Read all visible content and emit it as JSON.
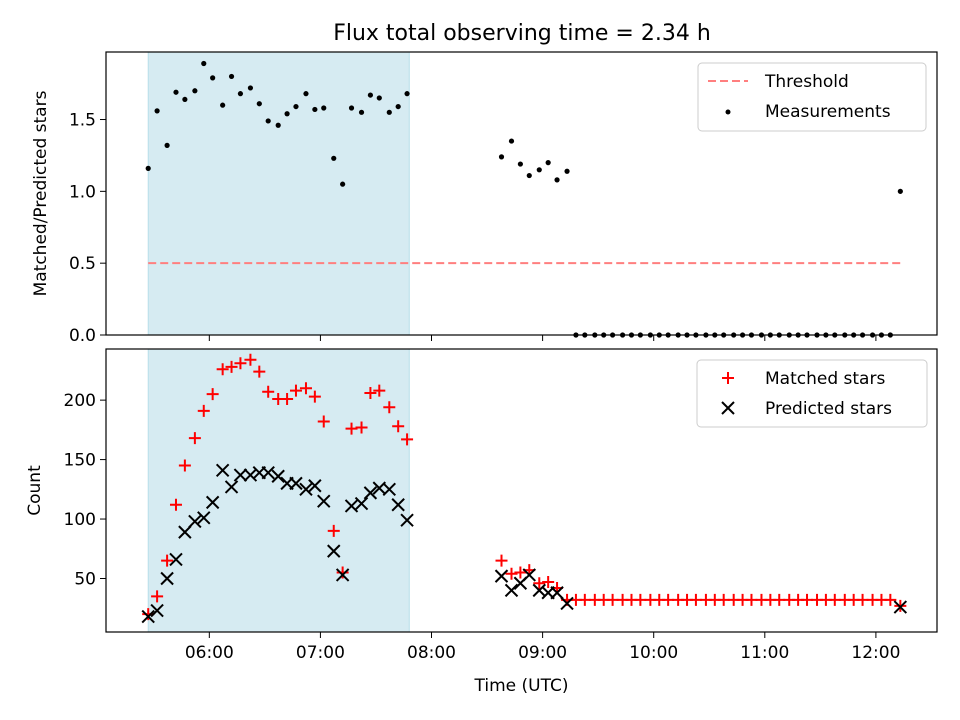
{
  "figure_title": "Flux total observing time = 2.34 h",
  "chart_data": [
    {
      "type": "scatter",
      "title": "Flux total observing time = 2.34 h",
      "xlabel": "",
      "ylabel": "Matched/Predicted stars",
      "ylim": [
        0,
        1.97
      ],
      "xlim_hours": [
        5.07,
        12.55
      ],
      "yticks": [
        "0.0",
        "0.5",
        "1.0",
        "1.5"
      ],
      "ytick_values": [
        0.0,
        0.5,
        1.0,
        1.5
      ],
      "highlight_span_hours": [
        5.45,
        7.8
      ],
      "threshold": {
        "value": 0.5,
        "x_range_hours": [
          5.45,
          12.22
        ],
        "color": "#ff7f7f"
      },
      "legend": {
        "placement": "top-right",
        "entries": [
          "Threshold",
          "Measurements"
        ]
      },
      "series": [
        {
          "name": "Measurements",
          "color": "#000000",
          "marker": "dot",
          "x_hours": [
            5.45,
            5.53,
            5.62,
            5.7,
            5.78,
            5.87,
            5.95,
            6.03,
            6.12,
            6.2,
            6.28,
            6.37,
            6.45,
            6.53,
            6.62,
            6.7,
            6.78,
            6.87,
            6.95,
            7.03,
            7.12,
            7.2,
            7.28,
            7.37,
            7.45,
            7.53,
            7.62,
            7.7,
            7.78,
            8.63,
            8.72,
            8.8,
            8.88,
            8.97,
            9.05,
            9.13,
            9.22,
            9.3,
            9.38,
            9.47,
            9.55,
            9.63,
            9.72,
            9.8,
            9.88,
            9.97,
            10.05,
            10.13,
            10.22,
            10.3,
            10.38,
            10.47,
            10.55,
            10.63,
            10.72,
            10.8,
            10.88,
            10.97,
            11.05,
            11.13,
            11.22,
            11.3,
            11.38,
            11.47,
            11.55,
            11.63,
            11.72,
            11.8,
            11.88,
            11.97,
            12.05,
            12.13,
            12.22
          ],
          "y": [
            1.16,
            1.56,
            1.32,
            1.69,
            1.64,
            1.7,
            1.89,
            1.79,
            1.6,
            1.8,
            1.68,
            1.72,
            1.61,
            1.49,
            1.46,
            1.54,
            1.59,
            1.68,
            1.57,
            1.58,
            1.23,
            1.05,
            1.58,
            1.55,
            1.67,
            1.65,
            1.55,
            1.59,
            1.68,
            1.24,
            1.35,
            1.19,
            1.11,
            1.15,
            1.2,
            1.08,
            1.14,
            0.0,
            0.0,
            0.0,
            0.0,
            0.0,
            0.0,
            0.0,
            0.0,
            0.0,
            0.0,
            0.0,
            0.0,
            0.0,
            0.0,
            0.0,
            0.0,
            0.0,
            0.0,
            0.0,
            0.0,
            0.0,
            0.0,
            0.0,
            0.0,
            0.0,
            0.0,
            0.0,
            0.0,
            0.0,
            0.0,
            0.0,
            0.0,
            0.0,
            0.0,
            0.0,
            1.0
          ]
        }
      ]
    },
    {
      "type": "scatter",
      "title": "",
      "xlabel": "Time (UTC)",
      "ylabel": "Count",
      "ylim": [
        5,
        243
      ],
      "xlim_hours": [
        5.07,
        12.55
      ],
      "yticks": [
        "50",
        "100",
        "150",
        "200"
      ],
      "ytick_values": [
        50,
        100,
        150,
        200
      ],
      "xticks": [
        "06:00",
        "07:00",
        "08:00",
        "09:00",
        "10:00",
        "11:00",
        "12:00"
      ],
      "xtick_values_hours": [
        6,
        7,
        8,
        9,
        10,
        11,
        12
      ],
      "highlight_span_hours": [
        5.45,
        7.8
      ],
      "legend": {
        "placement": "top-right",
        "entries": [
          "Matched stars",
          "Predicted stars"
        ]
      },
      "series": [
        {
          "name": "Matched stars",
          "color": "#ff0000",
          "marker": "plus",
          "x_hours": [
            5.45,
            5.53,
            5.62,
            5.7,
            5.78,
            5.87,
            5.95,
            6.03,
            6.12,
            6.2,
            6.28,
            6.37,
            6.45,
            6.53,
            6.62,
            6.7,
            6.78,
            6.87,
            6.95,
            7.03,
            7.12,
            7.2,
            7.28,
            7.37,
            7.45,
            7.53,
            7.62,
            7.7,
            7.78,
            8.63,
            8.72,
            8.8,
            8.88,
            8.97,
            9.05,
            9.13,
            9.22,
            9.3,
            9.38,
            9.47,
            9.55,
            9.63,
            9.72,
            9.8,
            9.88,
            9.97,
            10.05,
            10.13,
            10.22,
            10.3,
            10.38,
            10.47,
            10.55,
            10.63,
            10.72,
            10.8,
            10.88,
            10.97,
            11.05,
            11.13,
            11.22,
            11.3,
            11.38,
            11.47,
            11.55,
            11.63,
            11.72,
            11.8,
            11.88,
            11.97,
            12.05,
            12.13,
            12.22
          ],
          "y": [
            20,
            35,
            65,
            112,
            145,
            168,
            191,
            205,
            226,
            228,
            231,
            234,
            224,
            207,
            201,
            201,
            208,
            210,
            203,
            182,
            90,
            55,
            176,
            177,
            206,
            208,
            194,
            178,
            167,
            65,
            54,
            55,
            57,
            46,
            47,
            42,
            32,
            32,
            32,
            32,
            32,
            32,
            32,
            32,
            32,
            32,
            32,
            32,
            32,
            32,
            32,
            32,
            32,
            32,
            32,
            32,
            32,
            32,
            32,
            32,
            32,
            32,
            32,
            32,
            32,
            32,
            32,
            32,
            32,
            32,
            32,
            32,
            27
          ]
        },
        {
          "name": "Predicted stars",
          "color": "#000000",
          "marker": "x",
          "x_hours": [
            5.45,
            5.53,
            5.62,
            5.7,
            5.78,
            5.87,
            5.95,
            6.03,
            6.12,
            6.2,
            6.28,
            6.37,
            6.45,
            6.53,
            6.62,
            6.7,
            6.78,
            6.87,
            6.95,
            7.03,
            7.12,
            7.2,
            7.28,
            7.37,
            7.45,
            7.53,
            7.62,
            7.7,
            7.78,
            8.63,
            8.72,
            8.8,
            8.88,
            8.97,
            9.05,
            9.13,
            9.22,
            12.22
          ],
          "y": [
            18,
            23,
            50,
            66,
            89,
            98,
            101,
            114,
            141,
            127,
            137,
            137,
            139,
            139,
            136,
            130,
            130,
            125,
            128,
            115,
            73,
            53,
            111,
            113,
            122,
            126,
            125,
            112,
            99,
            52,
            40,
            46,
            53,
            40,
            38,
            38,
            29,
            26
          ]
        }
      ]
    }
  ]
}
